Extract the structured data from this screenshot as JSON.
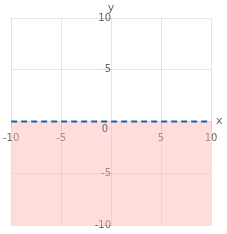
{
  "chart_data": {
    "type": "line",
    "x": [
      -10,
      10
    ],
    "series": [
      {
        "type": "area",
        "color": "#ffb3b3",
        "values": [
          0,
          0
        ],
        "lower": [
          -10,
          -10
        ]
      },
      {
        "type": "line",
        "color": "#1f5fa6",
        "line_style": "dashed",
        "values": [
          0,
          0
        ]
      }
    ],
    "xlim": [
      -10,
      10
    ],
    "ylim": [
      -10,
      10
    ],
    "xticks": [
      -10,
      -5,
      5,
      10
    ],
    "yticks": [
      -10,
      -5,
      5,
      10
    ],
    "xlabel": "x",
    "ylabel": "y",
    "annotations": [
      {
        "text": "0",
        "x": 0,
        "y": 0
      }
    ],
    "grid": true
  }
}
